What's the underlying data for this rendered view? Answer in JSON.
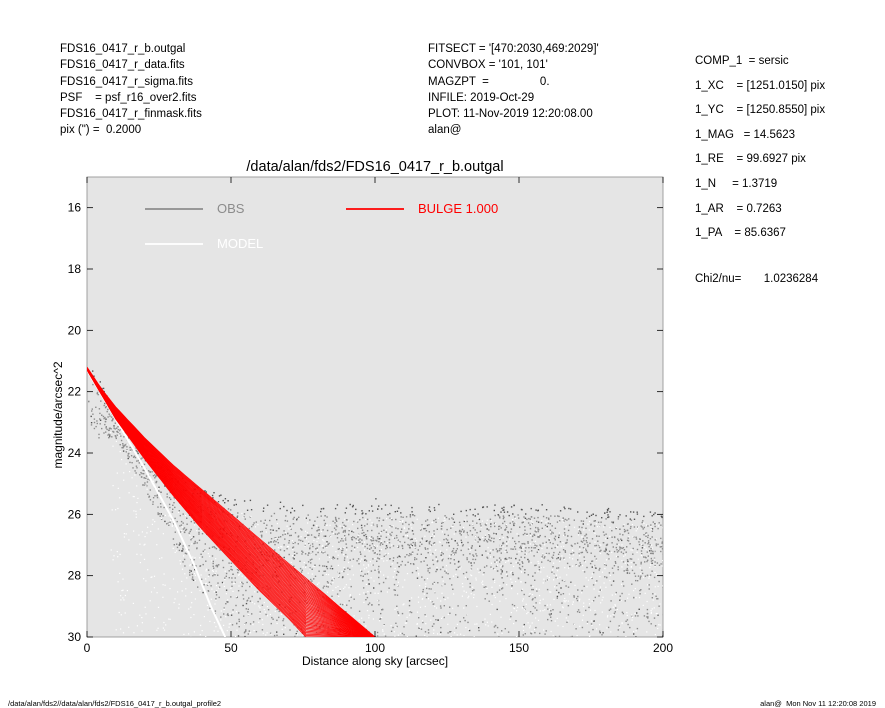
{
  "header": {
    "left_lines": [
      "FDS16_0417_r_b.outgal",
      "FDS16_0417_r_data.fits",
      "FDS16_0417_r_sigma.fits",
      "PSF    = psf_r16_over2.fits",
      "FDS16_0417_r_finmask.fits",
      "pix (\") =  0.2000"
    ],
    "mid_lines": [
      "FITSECT = '[470:2030,469:2029]'",
      "CONVBOX = '101, 101'",
      "MAGZPT  =                0.",
      "INFILE: 2019-Oct-29",
      "PLOT: 11-Nov-2019 12:20:08.00",
      "alan@"
    ],
    "right_lines": [
      "COMP_1  = sersic",
      "1_XC    = [1251.0150] pix",
      "1_YC    = [1250.8550] pix",
      "1_MAG   = 14.5623",
      "1_RE    = 99.6927 pix",
      "1_N     = 1.3719",
      "1_AR    = 0.7263",
      "1_PA    = 85.6367"
    ],
    "chi2_label": "Chi2/nu=",
    "chi2_value": "1.0236284"
  },
  "footer": {
    "left": "/data/alan/fds2//data/alan/fds2/FDS16_0417_r_b.outgal_profile2",
    "right": "alan@  Mon Nov 11 12:20:08 2019"
  },
  "chart_data": {
    "type": "scatter",
    "title": "/data/alan/fds2/FDS16_0417_r_b.outgal",
    "xlabel": "Distance along sky [arcsec]",
    "ylabel": "magnitude/arcsec^2",
    "xlim": [
      0,
      200
    ],
    "ylim": [
      30,
      15
    ],
    "y_inverted": true,
    "xticks": [
      0,
      50,
      100,
      150,
      200
    ],
    "yticks": [
      16,
      18,
      20,
      22,
      24,
      26,
      28,
      30
    ],
    "grid": false,
    "background_color": "#e5e5e5",
    "legend": [
      {
        "label": "OBS",
        "color": "#8c8c8c"
      },
      {
        "label": "MODEL",
        "color": "#ffffff"
      },
      {
        "label": "BULGE  1.000",
        "color": "#ff0000"
      }
    ],
    "series": [
      {
        "name": "OBS",
        "color": "#8c8c8c",
        "description": "observed isophote magnitudes (dense point cloud)",
        "points": [
          [
            0.3,
            20.6
          ],
          [
            2,
            21.3
          ],
          [
            5,
            21.9
          ],
          [
            10,
            22.8
          ],
          [
            20,
            24.0
          ],
          [
            30,
            24.8
          ],
          [
            40,
            25.3
          ],
          [
            50,
            25.6
          ],
          [
            60,
            25.7
          ],
          [
            80,
            25.8
          ],
          [
            100,
            25.8
          ],
          [
            120,
            25.8
          ],
          [
            140,
            25.8
          ],
          [
            160,
            25.8
          ],
          [
            180,
            25.9
          ],
          [
            200,
            26.0
          ]
        ],
        "lower_envelope": [
          [
            10,
            23.5
          ],
          [
            20,
            25.2
          ],
          [
            30,
            27.0
          ],
          [
            40,
            28.8
          ],
          [
            50,
            30.0
          ],
          [
            200,
            30.0
          ]
        ],
        "cloud_center": [
          [
            150,
            26.9
          ]
        ]
      },
      {
        "name": "MODEL",
        "color": "#ffffff",
        "description": "model surface brightness along sky",
        "points": [
          [
            0,
            21.3
          ],
          [
            10,
            22.9
          ],
          [
            20,
            24.5
          ],
          [
            30,
            26.2
          ],
          [
            37,
            27.6
          ],
          [
            43,
            29.0
          ],
          [
            48,
            30.0
          ]
        ]
      },
      {
        "name": "BULGE  1.000",
        "color": "#ff0000",
        "description": "sersic bulge component band",
        "upper_edge": [
          [
            0,
            21.2
          ],
          [
            5,
            21.9
          ],
          [
            10,
            22.5
          ],
          [
            20,
            23.5
          ],
          [
            30,
            24.4
          ],
          [
            40,
            25.2
          ],
          [
            50,
            26.0
          ],
          [
            60,
            26.8
          ],
          [
            70,
            27.6
          ],
          [
            80,
            28.4
          ],
          [
            90,
            29.2
          ],
          [
            100,
            30.0
          ]
        ],
        "lower_edge": [
          [
            0,
            21.3
          ],
          [
            5,
            22.1
          ],
          [
            10,
            22.9
          ],
          [
            20,
            24.2
          ],
          [
            30,
            25.4
          ],
          [
            40,
            26.5
          ],
          [
            50,
            27.5
          ],
          [
            60,
            28.5
          ],
          [
            70,
            29.4
          ],
          [
            76,
            30.0
          ]
        ]
      }
    ]
  }
}
